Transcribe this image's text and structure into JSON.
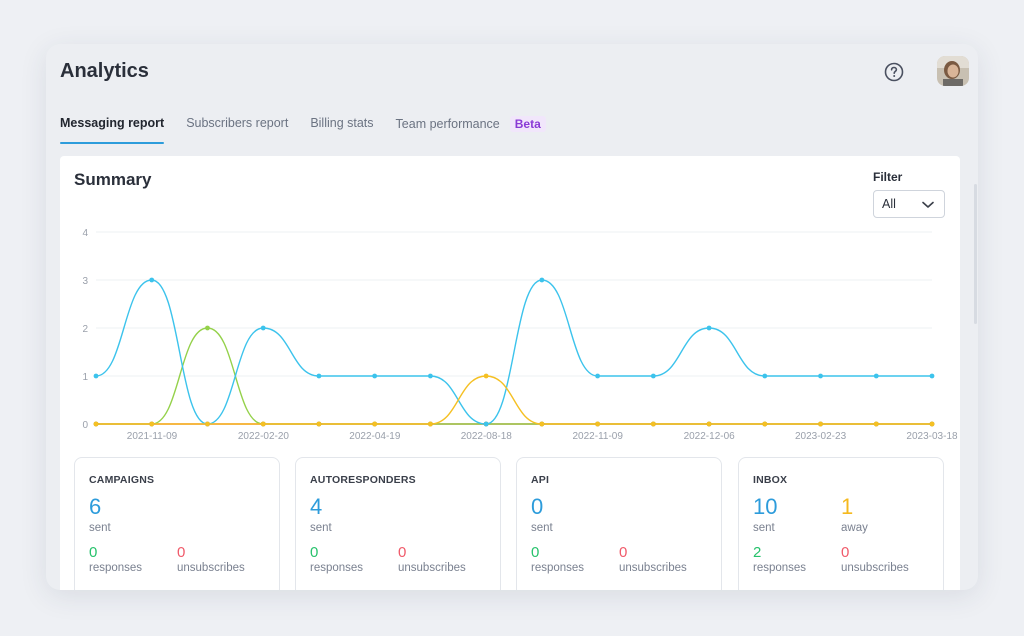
{
  "header": {
    "title": "Analytics"
  },
  "tabs": [
    {
      "label": "Messaging report",
      "active": true
    },
    {
      "label": "Subscribers report",
      "active": false
    },
    {
      "label": "Billing stats",
      "active": false
    },
    {
      "label": "Team performance",
      "active": false,
      "badge": "Beta"
    }
  ],
  "summary": {
    "title": "Summary",
    "filter_label": "Filter",
    "filter_value": "All"
  },
  "chart_data": {
    "type": "line",
    "x_tick_labels": [
      "2021-11-09",
      "2022-02-20",
      "2022-04-19",
      "2022-08-18",
      "2022-11-09",
      "2022-12-06",
      "2023-02-23",
      "2023-03-18"
    ],
    "y_ticks": [
      0,
      1,
      2,
      3,
      4
    ],
    "ylim": [
      0,
      4
    ],
    "point_count": 16,
    "grid": true,
    "series": [
      {
        "color": "#3cc3ec",
        "values": [
          1,
          3,
          0,
          2,
          1,
          1,
          1,
          0,
          3,
          1,
          1,
          2,
          1,
          1,
          1,
          1
        ]
      },
      {
        "color": "#94d14a",
        "values": [
          0,
          0,
          2,
          0,
          0,
          0,
          0,
          0,
          0,
          0,
          0,
          0,
          0,
          0,
          0,
          0
        ]
      },
      {
        "color": "#f2454f",
        "values": [
          0,
          0,
          0,
          0,
          0,
          0,
          0,
          0,
          0,
          0,
          0,
          0,
          0,
          0,
          0,
          0
        ]
      },
      {
        "color": "#f5c023",
        "values": [
          0,
          0,
          0,
          0,
          0,
          0,
          0,
          1,
          0,
          0,
          0,
          0,
          0,
          0,
          0,
          0
        ]
      }
    ]
  },
  "stats": [
    {
      "title": "CAMPAIGNS",
      "sent": "6",
      "sent_label": "sent",
      "responses": "0",
      "responses_label": "responses",
      "unsubscribes": "0",
      "unsubscribes_label": "unsubscribes"
    },
    {
      "title": "AUTORESPONDERS",
      "sent": "4",
      "sent_label": "sent",
      "responses": "0",
      "responses_label": "responses",
      "unsubscribes": "0",
      "unsubscribes_label": "unsubscribes"
    },
    {
      "title": "API",
      "sent": "0",
      "sent_label": "sent",
      "responses": "0",
      "responses_label": "responses",
      "unsubscribes": "0",
      "unsubscribes_label": "unsubscribes"
    },
    {
      "title": "INBOX",
      "sent": "10",
      "sent_label": "sent",
      "away": "1",
      "away_label": "away",
      "responses": "2",
      "responses_label": "responses",
      "unsubscribes": "0",
      "unsubscribes_label": "unsubscribes"
    }
  ],
  "colors": {
    "accent": "#2d9cdb",
    "away": "#f5b91e",
    "responses": "#27c26c",
    "unsubscribes": "#f05a6a",
    "badge_text": "#8a3ad6"
  },
  "icons": {
    "help": "question-circle-icon",
    "filter_dropdown": "chevron-down-icon"
  }
}
